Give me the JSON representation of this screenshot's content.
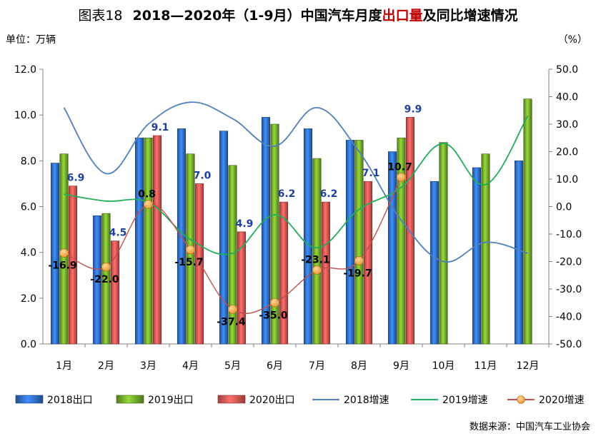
{
  "title": {
    "prefix": "图表18",
    "main_a": "2018—2020年（1-9月）中国汽车月度",
    "highlight": "出口量",
    "main_b": "及同比增速情况"
  },
  "left_unit": "单位：万辆",
  "right_unit": "（%）",
  "source": "数据来源：中国汽车工业协会",
  "colors": {
    "bar2018": "#2e6bbf",
    "bar2019": "#6fa32a",
    "bar2020": "#d9534f",
    "line2018": "#4f7fbd",
    "line2019": "#1fae5a",
    "line2020": "#c0504d",
    "marker2020": "#e8962e",
    "grid": "#e0e0e0",
    "highlight": "#c00000"
  },
  "chart_data": {
    "type": "bar",
    "categories": [
      "1月",
      "2月",
      "3月",
      "4月",
      "5月",
      "6月",
      "7月",
      "8月",
      "9月",
      "10月",
      "11月",
      "12月"
    ],
    "y_left": {
      "min": 0,
      "max": 12,
      "step": 2,
      "ticks": [
        "0.0",
        "2.0",
        "4.0",
        "6.0",
        "8.0",
        "10.0",
        "12.0"
      ]
    },
    "y_right": {
      "min": -50,
      "max": 50,
      "step": 10,
      "ticks": [
        "-50.0",
        "-40.0",
        "-30.0",
        "-20.0",
        "-10.0",
        "0.0",
        "10.0",
        "20.0",
        "30.0",
        "40.0",
        "50.0"
      ]
    },
    "bar_series": [
      {
        "name": "2018出口",
        "values": [
          7.9,
          5.6,
          9.0,
          9.4,
          9.3,
          9.9,
          9.4,
          8.9,
          8.4,
          7.1,
          7.7,
          8.0
        ]
      },
      {
        "name": "2019出口",
        "values": [
          8.3,
          5.7,
          9.0,
          8.3,
          7.8,
          9.6,
          8.1,
          8.9,
          9.0,
          8.8,
          8.3,
          10.7
        ]
      },
      {
        "name": "2020出口",
        "values": [
          6.9,
          4.5,
          9.1,
          7.0,
          4.9,
          6.2,
          6.2,
          7.1,
          9.9,
          null,
          null,
          null
        ]
      }
    ],
    "bar2020_labels": [
      "6.9",
      "4.5",
      "9.1",
      "7.0",
      "4.9",
      "6.2",
      "6.2",
      "7.1",
      "9.9"
    ],
    "line_series": [
      {
        "name": "2018增速",
        "values": [
          36,
          12,
          30,
          38,
          32,
          22,
          36,
          20,
          -5,
          -20,
          -13,
          -17
        ]
      },
      {
        "name": "2019增速",
        "values": [
          4.5,
          2,
          1.5,
          -12,
          -17,
          -3,
          -15,
          -1,
          7,
          23,
          8,
          33
        ]
      },
      {
        "name": "2020增速",
        "values": [
          -16.9,
          -22.0,
          0.8,
          -15.7,
          -37.4,
          -35.0,
          -23.1,
          -19.7,
          10.7,
          null,
          null,
          null
        ]
      }
    ],
    "growth2020_labels": [
      "-16.9",
      "-22.0",
      "0.8",
      "-15.7",
      "-37.4",
      "-35.0",
      "-23.1",
      "-19.7",
      "10.7"
    ],
    "legend": [
      "2018出口",
      "2019出口",
      "2020出口",
      "2018增速",
      "2019增速",
      "2020增速"
    ],
    "legend_position": "bottom",
    "grid": false
  }
}
